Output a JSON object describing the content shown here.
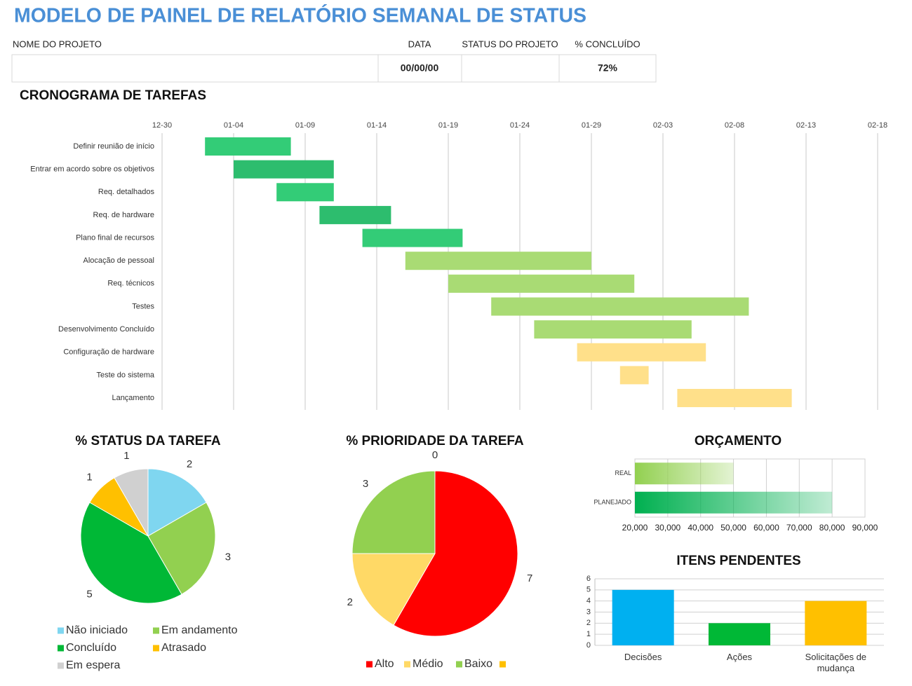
{
  "header": {
    "title": "MODELO DE PAINEL DE RELATÓRIO SEMANAL DE STATUS",
    "fields": [
      {
        "label": "NOME DO PROJETO"
      },
      {
        "label": "DATA",
        "value": "00/00/00"
      },
      {
        "label": "STATUS DO PROJETO"
      },
      {
        "label": "% CONCLUÍDO",
        "value": "72%"
      }
    ]
  },
  "chart_data": [
    {
      "type": "gantt",
      "title": "CRONOGRAMA DE TAREFAS",
      "categories": [
        "Definir reunião de início",
        "Entrar em acordo sobre os objetivos",
        "Req. detalhados",
        "Req. de hardware",
        "Plano final de recursos",
        "Alocação de pessoal",
        "Req. técnicos",
        "Testes",
        "Desenvolvimento Concluído",
        "Configuração de hardware",
        "Teste do sistema",
        "Lançamento"
      ],
      "start": [
        3,
        5,
        8,
        11,
        14,
        17,
        20,
        23,
        26,
        29,
        32,
        36
      ],
      "end": [
        9,
        12,
        12,
        16,
        21,
        30,
        33,
        41,
        37,
        38,
        34,
        44
      ],
      "colors": [
        "#33cc77",
        "#2dbd6e",
        "#33cc77",
        "#2dbd6e",
        "#33cc77",
        "#a9db74",
        "#a9db74",
        "#a9db74",
        "#a9db74",
        "#ffe08a",
        "#ffe08a",
        "#ffe08a"
      ],
      "xlim": [
        0,
        50
      ],
      "xticks": [
        {
          "value": 0,
          "label": "12-30"
        },
        {
          "value": 5,
          "label": "01-04"
        },
        {
          "value": 10,
          "label": "01-09"
        },
        {
          "value": 15,
          "label": "01-14"
        },
        {
          "value": 20,
          "label": "01-19"
        },
        {
          "value": 25,
          "label": "01-24"
        },
        {
          "value": 30,
          "label": "01-29"
        },
        {
          "value": 35,
          "label": "02-03"
        },
        {
          "value": 40,
          "label": "02-08"
        },
        {
          "value": 45,
          "label": "02-13"
        },
        {
          "value": 50,
          "label": "02-18"
        }
      ],
      "grid": true
    },
    {
      "type": "pie",
      "title": "% STATUS DA TAREFA",
      "categories": [
        "Não iniciado",
        "Em andamento",
        "Concluído",
        "Atrasado",
        "Em espera"
      ],
      "values": [
        2,
        3,
        5,
        1,
        1
      ],
      "colors": [
        "#7fd6f0",
        "#92d050",
        "#00b836",
        "#ffc000",
        "#d0d0d0"
      ]
    },
    {
      "type": "pie",
      "title": "% PRIORIDADE DA TAREFA",
      "categories": [
        "Alto",
        "Médio",
        "Baixo",
        null
      ],
      "values": [
        7,
        2,
        3,
        0
      ],
      "colors": [
        "#ff0000",
        "#ffd966",
        "#92d050",
        "#ffc000"
      ]
    },
    {
      "type": "bar",
      "horizontal": true,
      "title": "ORÇAMENTO",
      "categories": [
        "REAL",
        "PLANEJADO"
      ],
      "values": [
        50000,
        80000
      ],
      "colors": [
        "#92d050",
        "#00b050"
      ],
      "xlim": [
        20000,
        90000
      ],
      "xticks": [
        {
          "value": 20000,
          "label": "20,000"
        },
        {
          "value": 30000,
          "label": "30,000"
        },
        {
          "value": 40000,
          "label": "40,000"
        },
        {
          "value": 50000,
          "label": "50,000"
        },
        {
          "value": 60000,
          "label": "60,000"
        },
        {
          "value": 70000,
          "label": "70,000"
        },
        {
          "value": 80000,
          "label": "80,000"
        },
        {
          "value": 90000,
          "label": "90,000"
        }
      ],
      "grid": true
    },
    {
      "type": "bar",
      "horizontal": false,
      "title": "ITENS PENDENTES",
      "categories": [
        "Decisões",
        "Ações",
        "Solicitações de mudança"
      ],
      "values": [
        5,
        2,
        4
      ],
      "colors": [
        "#00b0f0",
        "#00b836",
        "#ffc000"
      ],
      "ylim": [
        0,
        6
      ],
      "yticks": [
        0,
        1,
        2,
        3,
        4,
        5,
        6
      ],
      "grid": true
    }
  ]
}
